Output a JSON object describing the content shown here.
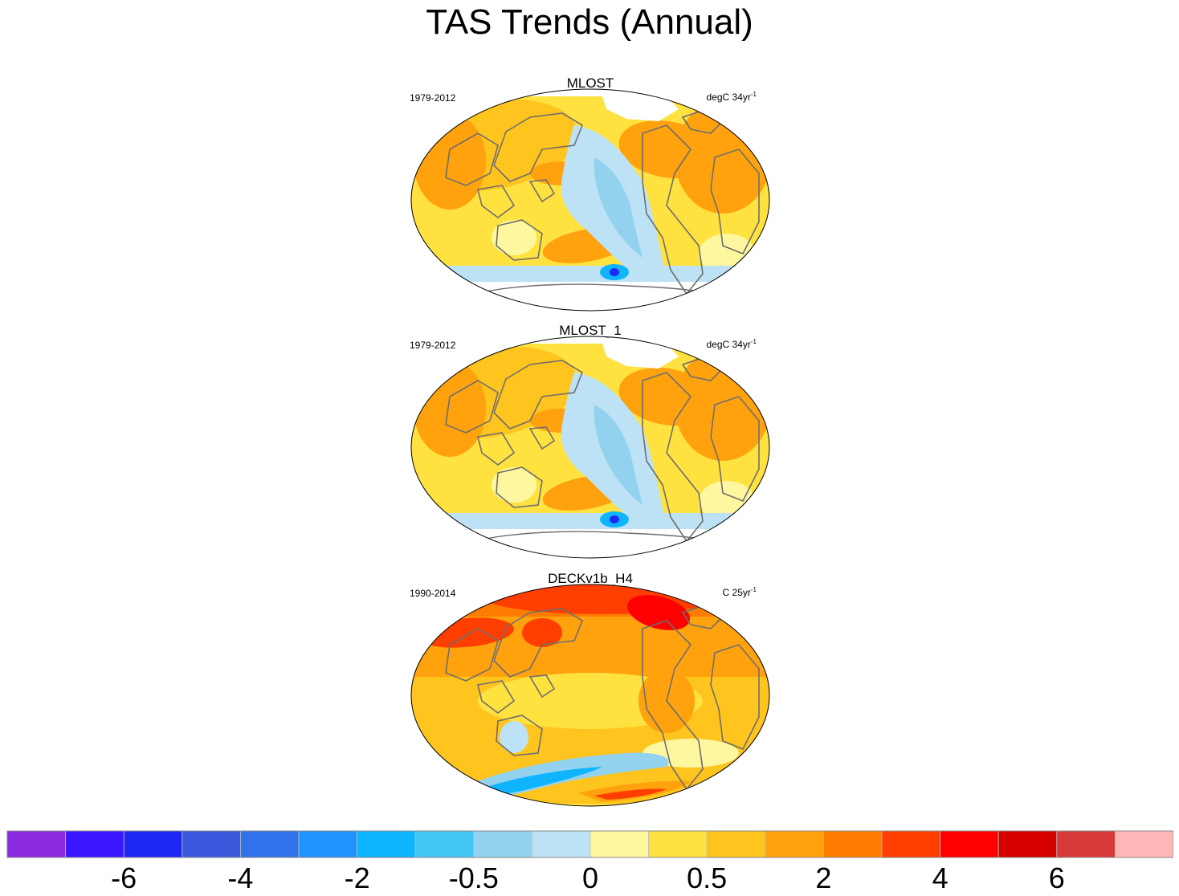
{
  "figure": {
    "title": "TAS Trends (Annual)"
  },
  "panels": [
    {
      "title": "MLOST",
      "period": "1979-2012",
      "units_text": "degC 34yr",
      "units_exp": "-1",
      "pattern": "mlost"
    },
    {
      "title": "MLOST_1",
      "period": "1979-2012",
      "units_text": "degC 34yr",
      "units_exp": "-1",
      "pattern": "mlost"
    },
    {
      "title": "DECKv1b_H4",
      "period": "1990-2014",
      "units_text": "C 25yr",
      "units_exp": "-1",
      "pattern": "deck"
    }
  ],
  "colorbar": {
    "colors": [
      "#8a2be2",
      "#3b16ff",
      "#1f29f5",
      "#3b58dd",
      "#3271ec",
      "#1f93ff",
      "#0fb4ff",
      "#44c6f5",
      "#93d2ef",
      "#bde2f5",
      "#fff7a0",
      "#ffe140",
      "#ffc41e",
      "#ffa20d",
      "#ff7c00",
      "#ff3e00",
      "#ff0000",
      "#d70000",
      "#d83a3a",
      "#ffb6b6"
    ],
    "labels": [
      {
        "text": "-6",
        "boundary": 2
      },
      {
        "text": "-4",
        "boundary": 4
      },
      {
        "text": "-2",
        "boundary": 6
      },
      {
        "text": "-0.5",
        "boundary": 8
      },
      {
        "text": "0",
        "boundary": 10
      },
      {
        "text": "0.5",
        "boundary": 12
      },
      {
        "text": "2",
        "boundary": 14
      },
      {
        "text": "4",
        "boundary": 16
      },
      {
        "text": "6",
        "boundary": 18
      }
    ]
  }
}
